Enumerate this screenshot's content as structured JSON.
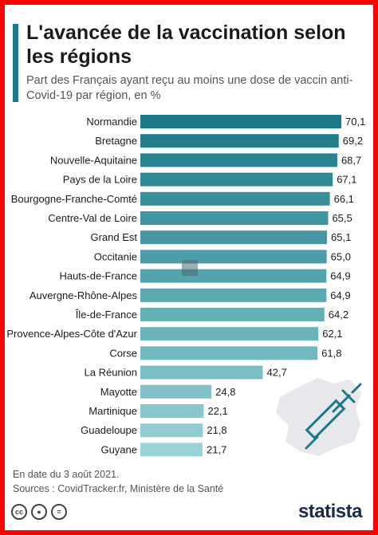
{
  "header": {
    "title": "L'avancée de la vaccination selon les régions",
    "subtitle": "Part des Français ayant reçu au moins une dose de vaccin anti-Covid-19 par région, en %"
  },
  "chart_data": {
    "type": "bar",
    "orientation": "horizontal",
    "categories": [
      "Normandie",
      "Bretagne",
      "Nouvelle-Aquitaine",
      "Pays de la Loire",
      "Bourgogne-Franche-Comté",
      "Centre-Val de Loire",
      "Grand Est",
      "Occitanie",
      "Hauts-de-France",
      "Auvergne-Rhône-Alpes",
      "Île-de-France",
      "Provence-Alpes-Côte d'Azur",
      "Corse",
      "La Réunion",
      "Mayotte",
      "Martinique",
      "Guadeloupe",
      "Guyane"
    ],
    "values": [
      70.1,
      69.2,
      68.7,
      67.1,
      66.1,
      65.5,
      65.1,
      65.0,
      64.9,
      64.9,
      64.2,
      62.1,
      61.8,
      42.7,
      24.8,
      22.1,
      21.8,
      21.7
    ],
    "value_labels": [
      "70,1",
      "69,2",
      "68,7",
      "67,1",
      "66,1",
      "65,5",
      "65,1",
      "65,0",
      "64,9",
      "64,9",
      "64,2",
      "62,1",
      "61,8",
      "42,7",
      "24,8",
      "22,1",
      "21,8",
      "21,7"
    ],
    "xlim": [
      0,
      70.1
    ],
    "grid": false,
    "colors": {
      "bar_dark": "#1a7a88",
      "bar_light": "#97d2d6"
    }
  },
  "footer": {
    "date_note": "En date du 3 août 2021.",
    "sources": "Sources : CovidTracker.fr, Ministère de la Santé",
    "logo": "statista",
    "icons": [
      "cc-icon",
      "by-icon",
      "nd-icon"
    ]
  },
  "colors": {
    "frame": "#ff0000",
    "accent": "#1a7a88",
    "title": "#1b1b1b",
    "text": "#555555"
  }
}
